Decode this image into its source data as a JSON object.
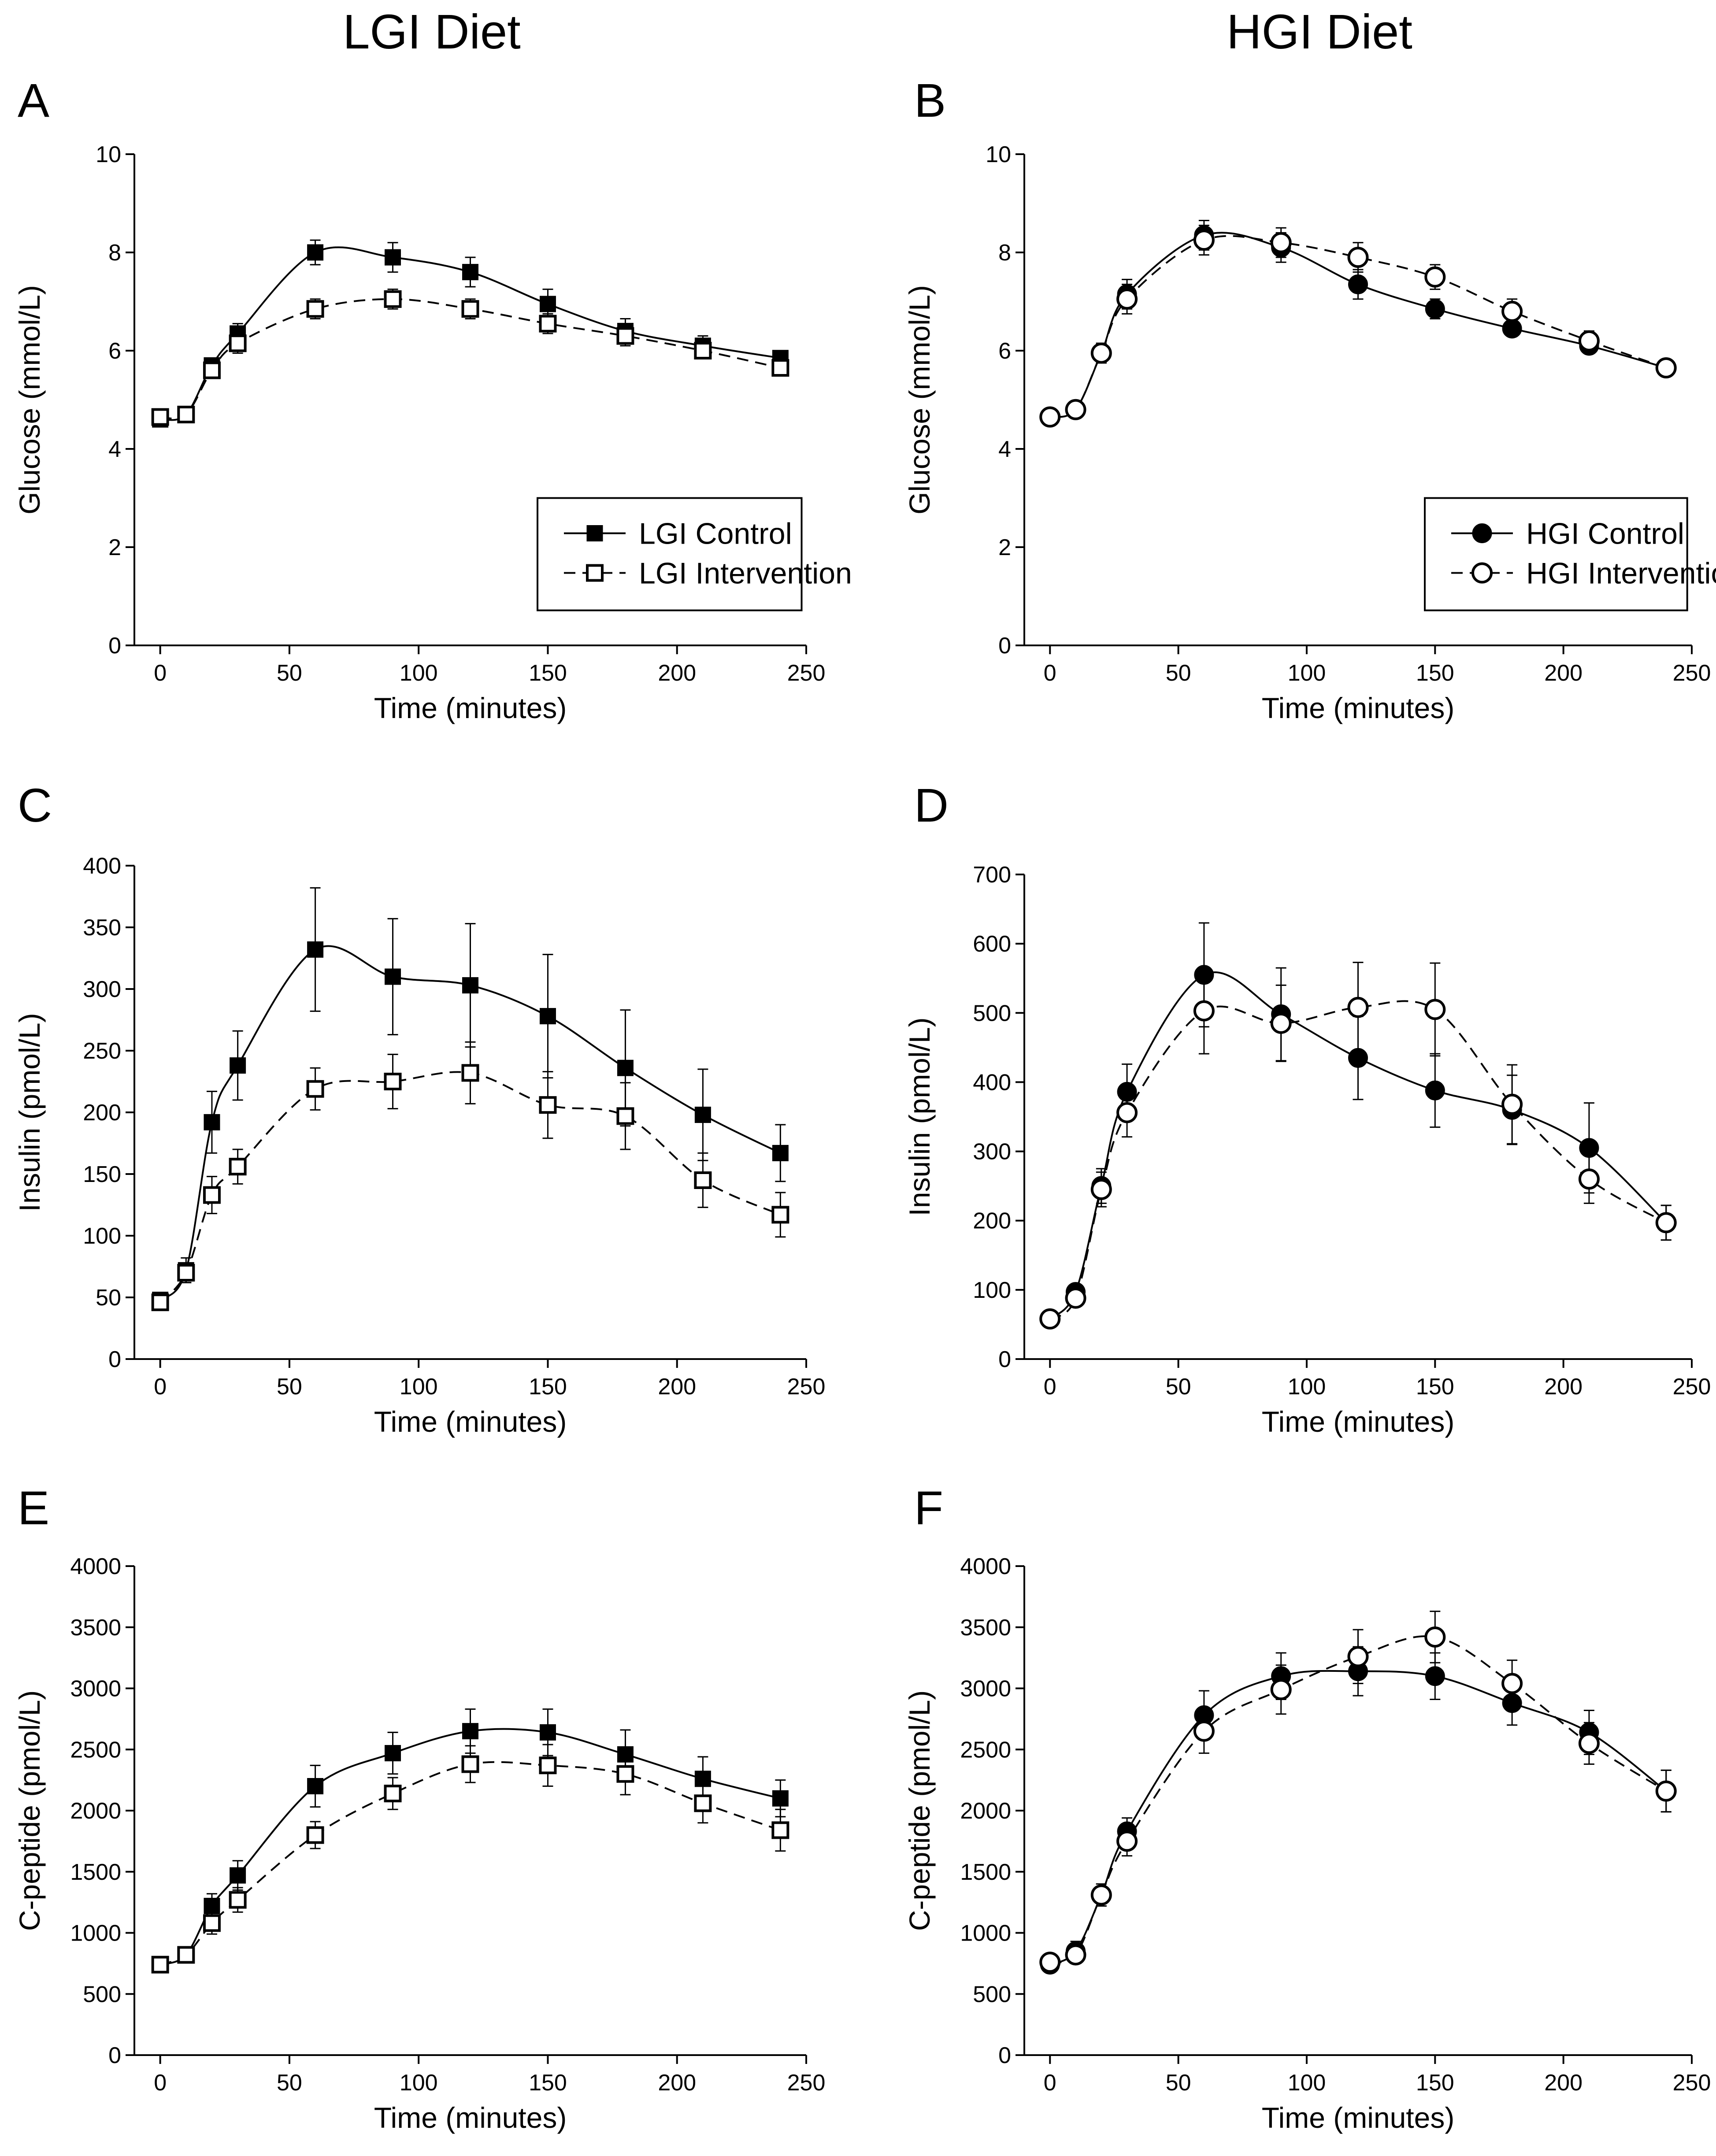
{
  "column_titles": [
    "LGI Diet",
    "HGI Diet"
  ],
  "chart_data": [
    {
      "panel": "A",
      "type": "line",
      "xlabel": "Time (minutes)",
      "ylabel": "Glucose (mmol/L)",
      "xlim": [
        -10,
        250
      ],
      "ylim": [
        0,
        10
      ],
      "xticks": [
        "0",
        "50",
        "100",
        "150",
        "200",
        "250"
      ],
      "yticks": [
        "0",
        "2",
        "4",
        "6",
        "8",
        "10"
      ],
      "x": [
        0,
        10,
        20,
        30,
        60,
        90,
        120,
        150,
        180,
        210,
        240
      ],
      "legend": "lower-right",
      "series": [
        {
          "name": "LGI Control",
          "marker": "square-filled",
          "line": "solid",
          "values": [
            4.6,
            4.7,
            5.7,
            6.35,
            8.0,
            7.9,
            7.6,
            6.95,
            6.4,
            6.1,
            5.85
          ],
          "errors": [
            0.15,
            0.15,
            0.15,
            0.2,
            0.25,
            0.3,
            0.3,
            0.3,
            0.25,
            0.2,
            0.15
          ]
        },
        {
          "name": "LGI Intervention",
          "marker": "square-open",
          "line": "dashed",
          "values": [
            4.65,
            4.7,
            5.6,
            6.15,
            6.85,
            7.05,
            6.85,
            6.55,
            6.3,
            6.0,
            5.65
          ],
          "errors": [
            0.15,
            0.15,
            0.15,
            0.2,
            0.2,
            0.2,
            0.2,
            0.2,
            0.2,
            0.15,
            0.15
          ]
        }
      ]
    },
    {
      "panel": "B",
      "type": "line",
      "xlabel": "Time (minutes)",
      "ylabel": "Glucose (mmol/L)",
      "xlim": [
        -10,
        250
      ],
      "ylim": [
        0,
        10
      ],
      "xticks": [
        "0",
        "50",
        "100",
        "150",
        "200",
        "250"
      ],
      "yticks": [
        "0",
        "2",
        "4",
        "6",
        "8",
        "10"
      ],
      "x": [
        0,
        10,
        20,
        30,
        60,
        90,
        120,
        150,
        180,
        210,
        240
      ],
      "legend": "lower-right",
      "series": [
        {
          "name": "HGI Control",
          "marker": "circle-filled",
          "line": "solid",
          "values": [
            4.65,
            4.8,
            5.95,
            7.15,
            8.35,
            8.1,
            7.35,
            6.85,
            6.45,
            6.1,
            5.65
          ],
          "errors": [
            0.1,
            0.1,
            0.2,
            0.3,
            0.3,
            0.3,
            0.3,
            0.2,
            0.15,
            0.15,
            0.15
          ]
        },
        {
          "name": "HGI Intervention",
          "marker": "circle-open",
          "line": "dashed",
          "values": [
            4.65,
            4.8,
            5.95,
            7.05,
            8.25,
            8.2,
            7.9,
            7.5,
            6.8,
            6.2,
            5.65
          ],
          "errors": [
            0.1,
            0.1,
            0.2,
            0.3,
            0.3,
            0.3,
            0.3,
            0.25,
            0.25,
            0.2,
            0.15
          ]
        }
      ]
    },
    {
      "panel": "C",
      "type": "line",
      "xlabel": "Time (minutes)",
      "ylabel": "Insulin (pmol/L)",
      "xlim": [
        -10,
        250
      ],
      "ylim": [
        0,
        400
      ],
      "xticks": [
        "0",
        "50",
        "100",
        "150",
        "200",
        "250"
      ],
      "yticks": [
        "0",
        "50",
        "100",
        "150",
        "200",
        "250",
        "300",
        "350",
        "400"
      ],
      "x": [
        0,
        10,
        20,
        30,
        60,
        90,
        120,
        150,
        180,
        210,
        240
      ],
      "series": [
        {
          "name": "LGI Control",
          "marker": "square-filled",
          "line": "solid",
          "values": [
            48,
            72,
            192,
            238,
            332,
            310,
            303,
            278,
            236,
            198,
            167
          ],
          "errors": [
            5,
            10,
            25,
            28,
            50,
            47,
            50,
            50,
            47,
            37,
            23
          ]
        },
        {
          "name": "LGI Intervention",
          "marker": "square-open",
          "line": "dashed",
          "values": [
            46,
            70,
            133,
            156,
            219,
            225,
            232,
            206,
            197,
            145,
            117
          ],
          "errors": [
            5,
            8,
            15,
            14,
            17,
            22,
            25,
            27,
            27,
            22,
            18
          ]
        }
      ]
    },
    {
      "panel": "D",
      "type": "line",
      "xlabel": "Time (minutes)",
      "ylabel": "Insulin (pmol/L)",
      "xlim": [
        -10,
        250
      ],
      "ylim": [
        0,
        700
      ],
      "xticks": [
        "0",
        "50",
        "100",
        "150",
        "200",
        "250"
      ],
      "yticks": [
        "0",
        "100",
        "200",
        "300",
        "400",
        "500",
        "600",
        "700"
      ],
      "x": [
        0,
        10,
        20,
        30,
        60,
        90,
        120,
        150,
        180,
        210,
        240
      ],
      "series": [
        {
          "name": "HGI Control",
          "marker": "circle-filled",
          "line": "solid",
          "values": [
            58,
            97,
            250,
            386,
            555,
            498,
            435,
            388,
            360,
            305,
            197
          ],
          "errors": [
            8,
            10,
            25,
            40,
            75,
            67,
            60,
            53,
            50,
            65,
            25
          ]
        },
        {
          "name": "HGI Intervention",
          "marker": "circle-open",
          "line": "dashed",
          "values": [
            58,
            88,
            245,
            356,
            503,
            485,
            508,
            505,
            368,
            260,
            197
          ],
          "errors": [
            8,
            10,
            25,
            35,
            62,
            55,
            65,
            67,
            57,
            35,
            25
          ]
        }
      ]
    },
    {
      "panel": "E",
      "type": "line",
      "xlabel": "Time (minutes)",
      "ylabel": "C-peptide (pmol/L)",
      "xlim": [
        -10,
        250
      ],
      "ylim": [
        0,
        4000
      ],
      "xticks": [
        "0",
        "50",
        "100",
        "150",
        "200",
        "250"
      ],
      "yticks": [
        "0",
        "500",
        "1000",
        "1500",
        "2000",
        "2500",
        "3000",
        "3500",
        "4000"
      ],
      "x": [
        0,
        10,
        20,
        30,
        60,
        90,
        120,
        150,
        180,
        210,
        240
      ],
      "series": [
        {
          "name": "LGI Control",
          "marker": "square-filled",
          "line": "solid",
          "values": [
            740,
            820,
            1220,
            1470,
            2200,
            2470,
            2650,
            2640,
            2460,
            2260,
            2100
          ],
          "errors": [
            50,
            60,
            100,
            120,
            170,
            170,
            180,
            190,
            200,
            180,
            150
          ]
        },
        {
          "name": "LGI Intervention",
          "marker": "square-open",
          "line": "dashed",
          "values": [
            740,
            820,
            1080,
            1270,
            1800,
            2140,
            2380,
            2370,
            2300,
            2060,
            1840
          ],
          "errors": [
            50,
            60,
            90,
            100,
            110,
            130,
            150,
            170,
            170,
            160,
            170
          ]
        }
      ]
    },
    {
      "panel": "F",
      "type": "line",
      "xlabel": "Time (minutes)",
      "ylabel": "C-peptide (pmol/L)",
      "xlim": [
        -10,
        250
      ],
      "ylim": [
        0,
        4000
      ],
      "xticks": [
        "0",
        "50",
        "100",
        "150",
        "200",
        "250"
      ],
      "yticks": [
        "0",
        "500",
        "1000",
        "1500",
        "2000",
        "2500",
        "3000",
        "3500",
        "4000"
      ],
      "x": [
        0,
        10,
        20,
        30,
        60,
        90,
        120,
        150,
        180,
        210,
        240
      ],
      "series": [
        {
          "name": "HGI Control",
          "marker": "circle-filled",
          "line": "solid",
          "values": [
            740,
            850,
            1310,
            1830,
            2780,
            3100,
            3140,
            3100,
            2880,
            2640,
            2160
          ],
          "errors": [
            60,
            80,
            90,
            110,
            200,
            190,
            200,
            190,
            180,
            180,
            170
          ]
        },
        {
          "name": "HGI Intervention",
          "marker": "circle-open",
          "line": "dashed",
          "values": [
            760,
            820,
            1310,
            1750,
            2650,
            2990,
            3260,
            3420,
            3040,
            2550,
            2160
          ],
          "errors": [
            60,
            70,
            90,
            120,
            180,
            200,
            220,
            210,
            190,
            170,
            170
          ]
        }
      ]
    }
  ]
}
